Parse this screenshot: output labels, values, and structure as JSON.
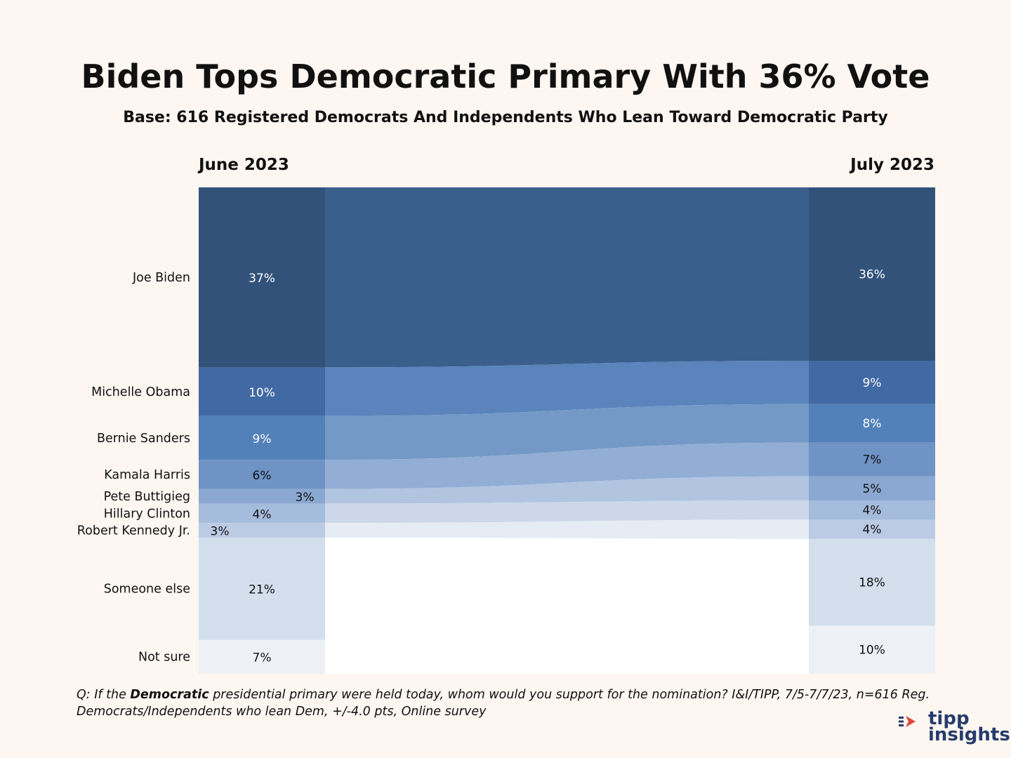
{
  "title": "Biden Tops Democratic Primary With 36% Vote",
  "subtitle": "Base: 616 Registered Democrats And Independents Who Lean Toward Democratic Party",
  "footnote": {
    "prefix": "Q:  If the ",
    "emphasis": "Democratic",
    "rest": "   presidential primary were held today, whom would you support for the nomination? I&I/TIPP, 7/5-7/7/23, n=616 Reg. Democrats/Independents who lean Dem, +/-4.0 pts, Online survey"
  },
  "logo": {
    "line1": "tipp",
    "line2": "insights",
    "icon": "tipp-logo-arrow-icon"
  },
  "chart_data": {
    "type": "bar",
    "subtype": "stacked-alluvial",
    "periods": [
      "June 2023",
      "July 2023"
    ],
    "categories": [
      "Joe Biden",
      "Michelle Obama",
      "Bernie Sanders",
      "Kamala Harris",
      "Pete Buttigieg",
      "Hillary Clinton",
      "Robert Kennedy Jr.",
      "Someone else",
      "Not sure"
    ],
    "series": [
      {
        "name": "June 2023",
        "values": [
          37,
          10,
          9,
          6,
          3,
          4,
          3,
          21,
          7
        ]
      },
      {
        "name": "July 2023",
        "values": [
          36,
          9,
          8,
          7,
          5,
          4,
          4,
          18,
          10
        ]
      }
    ],
    "labels": {
      "June 2023": [
        "37%",
        "10%",
        "9%",
        "6%",
        "3%",
        "4%",
        "3%",
        "21%",
        "7%"
      ],
      "July 2023": [
        "36%",
        "9%",
        "8%",
        "7%",
        "5%",
        "4%",
        "4%",
        "18%",
        "10%"
      ]
    },
    "unit": "%",
    "colors": {
      "bars": [
        "#32527a",
        "#4169a3",
        "#5280b9",
        "#6e93c4",
        "#8aa8d1",
        "#a6bcdc",
        "#bccbe4",
        "#d3dfed",
        "#edf1f6"
      ],
      "flows": [
        "#3b5f8d",
        "#5a84bb",
        "#7499c7",
        "#92aed5",
        "#b1c5e0",
        "#ccd8ea",
        "#e6ecf4"
      ]
    },
    "flow_categories": [
      "Joe Biden",
      "Michelle Obama",
      "Bernie Sanders",
      "Kamala Harris",
      "Pete Buttigieg",
      "Hillary Clinton",
      "Robert Kennedy Jr."
    ],
    "legend": "none",
    "grid": false
  }
}
